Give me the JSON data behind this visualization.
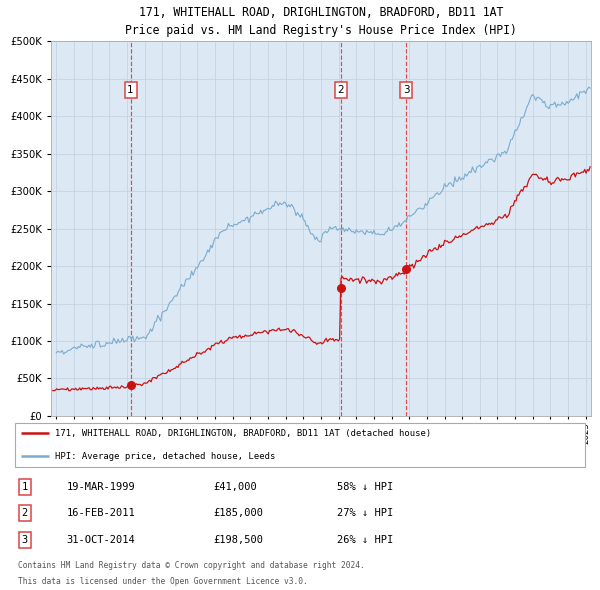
{
  "title": "171, WHITEHALL ROAD, DRIGHLINGTON, BRADFORD, BD11 1AT",
  "subtitle": "Price paid vs. HM Land Registry's House Price Index (HPI)",
  "legend_red": "171, WHITEHALL ROAD, DRIGHLINGTON, BRADFORD, BD11 1AT (detached house)",
  "legend_blue": "HPI: Average price, detached house, Leeds",
  "footnote1": "Contains HM Land Registry data © Crown copyright and database right 2024.",
  "footnote2": "This data is licensed under the Open Government Licence v3.0.",
  "transactions": [
    {
      "num": 1,
      "date": "19-MAR-1999",
      "price": 41000,
      "pct": "58% ↓ HPI",
      "x_year": 1999.21
    },
    {
      "num": 2,
      "date": "16-FEB-2011",
      "price": 185000,
      "pct": "27% ↓ HPI",
      "x_year": 2011.12
    },
    {
      "num": 3,
      "date": "31-OCT-2014",
      "price": 198500,
      "pct": "26% ↓ HPI",
      "x_year": 2014.83
    }
  ],
  "hpi_color": "#7aabcf",
  "red_color": "#cc1111",
  "dashed_color": "#dd4444",
  "bg_color": "#dce9f5",
  "grid_color": "#c0d0e0",
  "ylim": [
    0,
    500000
  ],
  "y_tick_step": 50000,
  "xlim_start": 1994.7,
  "xlim_end": 2025.3
}
